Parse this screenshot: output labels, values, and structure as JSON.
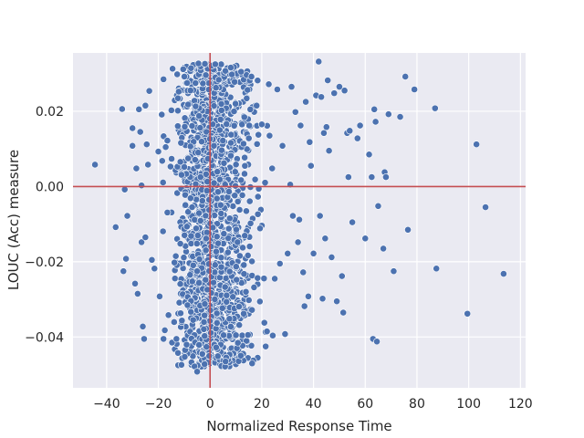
{
  "chart_data": {
    "type": "scatter",
    "title": "",
    "xlabel": "Normalized Response Time",
    "ylabel": "LOUC (Acc) measure",
    "xlim": [
      -53,
      122
    ],
    "ylim": [
      -0.0535,
      0.0355
    ],
    "x_ticks": [
      -40,
      -20,
      0,
      20,
      40,
      60,
      80,
      100,
      120
    ],
    "x_tick_labels": [
      "−40",
      "−20",
      "0",
      "20",
      "40",
      "60",
      "80",
      "100",
      "120"
    ],
    "y_ticks": [
      -0.04,
      -0.02,
      0.0,
      0.02
    ],
    "y_tick_labels": [
      "−0.04",
      "−0.02",
      "0.00",
      "0.02"
    ],
    "grid": true,
    "background_color": "#eaeaf2",
    "marker_color": "#4c72b0",
    "reference_line_color": "#c44e52",
    "reference_lines": {
      "x": 0,
      "y": 0
    },
    "cluster_description": "dense band of points for x roughly between -25 and 25 spanning y from about -0.05 to 0.033",
    "points": [
      [
        -44.5,
        0.0058
      ],
      [
        -34,
        0.0206
      ],
      [
        -33,
        -0.0008
      ],
      [
        -36.5,
        -0.0108
      ],
      [
        -33.5,
        -0.0225
      ],
      [
        -32.5,
        -0.0192
      ],
      [
        -32,
        -0.0078
      ],
      [
        -30,
        0.0155
      ],
      [
        -30,
        0.0108
      ],
      [
        -29,
        -0.0258
      ],
      [
        -28.5,
        0.0048
      ],
      [
        -28,
        -0.0285
      ],
      [
        -27.5,
        0.0205
      ],
      [
        -27,
        0.0145
      ],
      [
        -26.5,
        -0.0148
      ],
      [
        -26.5,
        0.0003
      ],
      [
        -26,
        -0.0372
      ],
      [
        -25.5,
        -0.0405
      ],
      [
        -25,
        -0.0135
      ],
      [
        -25,
        0.0215
      ],
      [
        -24.5,
        0.0112
      ],
      [
        -24,
        0.0058
      ],
      [
        -23.5,
        0.0254
      ],
      [
        -22.5,
        -0.0195
      ],
      [
        -21.5,
        -0.0218
      ],
      [
        -20,
        0.0093
      ],
      [
        -19.5,
        -0.0292
      ],
      [
        -18.5,
        0.0068
      ],
      [
        -18,
        0.0285
      ],
      [
        -18,
        -0.0405
      ],
      [
        -17.5,
        -0.0382
      ],
      [
        -16.5,
        0.0122
      ],
      [
        -14.5,
        0.0313
      ],
      [
        -13,
        -0.0405
      ],
      [
        -8.5,
        0.0218
      ],
      [
        -6,
        -0.0478
      ],
      [
        -5,
        -0.0492
      ],
      [
        -4.5,
        0.0327
      ],
      [
        -3,
        -0.0445
      ],
      [
        -2,
        0.0326
      ],
      [
        2,
        0.0325
      ],
      [
        3,
        -0.0451
      ],
      [
        6,
        -0.0465
      ],
      [
        8,
        0.0316
      ],
      [
        10,
        -0.0395
      ],
      [
        12,
        0.0305
      ],
      [
        13,
        -0.0338
      ],
      [
        15,
        -0.0302
      ],
      [
        16,
        0.0292
      ],
      [
        17,
        -0.0268
      ],
      [
        18,
        0.0215
      ],
      [
        20,
        0.0165
      ],
      [
        21,
        -0.0362
      ],
      [
        21.5,
        -0.0425
      ],
      [
        22,
        -0.0385
      ],
      [
        23,
        0.0135
      ],
      [
        24,
        0.0048
      ],
      [
        25,
        -0.0245
      ],
      [
        26,
        0.0258
      ],
      [
        27,
        -0.0205
      ],
      [
        28,
        0.0108
      ],
      [
        29,
        -0.0392
      ],
      [
        30,
        -0.0178
      ],
      [
        31,
        0.0005
      ],
      [
        31.5,
        0.0265
      ],
      [
        32,
        -0.0078
      ],
      [
        33,
        0.0198
      ],
      [
        34,
        -0.0148
      ],
      [
        34.5,
        -0.0088
      ],
      [
        35,
        0.0162
      ],
      [
        36,
        -0.0228
      ],
      [
        36.5,
        -0.0318
      ],
      [
        37,
        0.0225
      ],
      [
        38,
        -0.0292
      ],
      [
        38.5,
        0.0118
      ],
      [
        39,
        0.0055
      ],
      [
        40,
        -0.0178
      ],
      [
        41,
        0.0242
      ],
      [
        42,
        0.0332
      ],
      [
        42.5,
        -0.0078
      ],
      [
        43,
        0.0238
      ],
      [
        43.5,
        -0.0298
      ],
      [
        44,
        0.0142
      ],
      [
        44.5,
        -0.0138
      ],
      [
        45,
        0.0158
      ],
      [
        45.5,
        0.0282
      ],
      [
        46,
        0.0095
      ],
      [
        47,
        -0.0188
      ],
      [
        48,
        0.0248
      ],
      [
        49,
        -0.0305
      ],
      [
        50,
        0.0265
      ],
      [
        51,
        -0.0238
      ],
      [
        51.5,
        -0.0335
      ],
      [
        52,
        0.0255
      ],
      [
        53,
        0.0142
      ],
      [
        53.5,
        0.0025
      ],
      [
        54,
        0.0148
      ],
      [
        55,
        -0.0095
      ],
      [
        57,
        0.0128
      ],
      [
        58,
        0.0162
      ],
      [
        60,
        -0.0138
      ],
      [
        61.5,
        0.0085
      ],
      [
        62.5,
        0.0025
      ],
      [
        63,
        -0.0405
      ],
      [
        63.5,
        0.0205
      ],
      [
        64,
        0.0172
      ],
      [
        64.5,
        -0.0412
      ],
      [
        65,
        -0.0052
      ],
      [
        67,
        -0.0165
      ],
      [
        67.5,
        0.0038
      ],
      [
        68,
        0.0025
      ],
      [
        69,
        0.0192
      ],
      [
        71,
        -0.0225
      ],
      [
        73.5,
        0.0185
      ],
      [
        75.5,
        0.0292
      ],
      [
        76.5,
        -0.0115
      ],
      [
        79,
        0.0258
      ],
      [
        87,
        0.0208
      ],
      [
        87.5,
        -0.0218
      ],
      [
        99.5,
        -0.0338
      ],
      [
        103,
        0.0112
      ],
      [
        106.5,
        -0.0055
      ],
      [
        113.5,
        -0.0232
      ]
    ]
  }
}
